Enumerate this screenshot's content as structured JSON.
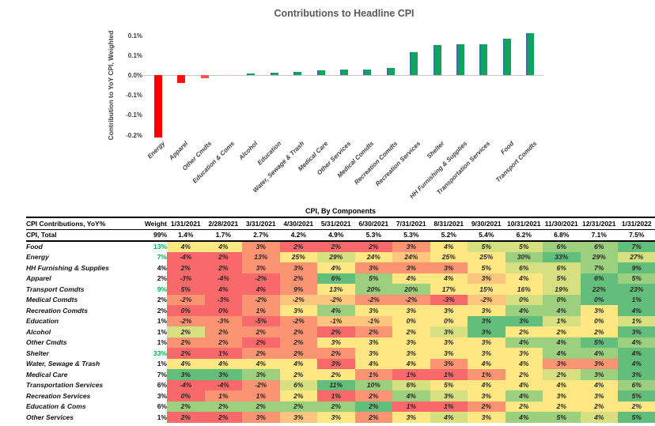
{
  "chart": {
    "title": "Contributions to Headline CPI",
    "y_axis_title": "Contribution to YoY CPI, Weighted"
  },
  "chart_data": {
    "type": "bar",
    "title": "Contributions to Headline CPI",
    "xlabel": "",
    "ylabel": "Contribution to YoY CPI, Weighted",
    "ylim": [
      -0.15,
      0.1
    ],
    "grid": false,
    "y_ticks": [
      {
        "label": "0.1%",
        "value": 0.1
      },
      {
        "label": "0.1%",
        "value": 0.05
      },
      {
        "label": "0.0%",
        "value": 0.0
      },
      {
        "label": "-0.1%",
        "value": -0.05
      },
      {
        "label": "-0.1%",
        "value": -0.1
      },
      {
        "label": "-0.2%",
        "value": -0.15
      }
    ],
    "categories": [
      "Energy",
      "Apparel",
      "Other Cmdts",
      "Education & Coms",
      "Alcohol",
      "Education",
      "Water, Sewage & Trash",
      "Medical Care",
      "Other Services",
      "Medical Comdts",
      "Recreation Comdts",
      "Recreation Services",
      "Shelter",
      "HH Furnishing & Supplies",
      "Transportation Services",
      "Food",
      "Transport Comdts"
    ],
    "values": [
      -0.155,
      -0.02,
      -0.007,
      -0.002,
      0.005,
      0.006,
      0.008,
      0.013,
      0.015,
      0.015,
      0.018,
      0.058,
      0.077,
      0.079,
      0.078,
      0.092,
      0.105
    ],
    "bar_colors": [
      "#FF0000",
      "#FF0D0D",
      "#FF5050",
      "#FFB9B9",
      "#0FA45B",
      "#0FA45B",
      "#0FA45B",
      "#0FA45B",
      "#0FA45B",
      "#0FA45B",
      "#0FA45B",
      "#0FA45B",
      "#0FA45B",
      "#0FA45B",
      "#0FA45B",
      "#0FA45B",
      "#0FA45B"
    ],
    "positive_border_color": "#2E74B5"
  },
  "table": {
    "title": "CPI, By Components",
    "palette": {
      "R": "#F8696B",
      "O": "#FA9473",
      "YO": "#FDC57D",
      "Y": "#FFE884",
      "YG": "#D7E081",
      "LG": "#9CCF7E",
      "G": "#63BE7B"
    },
    "weight_green_color": "#00B050",
    "header": {
      "label_col": "CPI Contributions, YoY%",
      "weight_col": "Weight",
      "dates": [
        "1/31/2021",
        "2/28/2021",
        "3/31/2021",
        "4/30/2021",
        "5/31/2021",
        "6/30/2021",
        "7/31/2021",
        "8/31/2021",
        "9/30/2021",
        "10/31/2021",
        "11/30/2021",
        "12/31/2021",
        "1/31/2022"
      ]
    },
    "total_row": {
      "label": "CPI, Total",
      "weight": "99%",
      "values": [
        "1.4%",
        "1.7%",
        "2.7%",
        "4.2%",
        "4.9%",
        "5.3%",
        "5.3%",
        "5.2%",
        "5.4%",
        "6.2%",
        "6.8%",
        "7.1%",
        "7.5%"
      ]
    },
    "rows": [
      {
        "label": "Food",
        "weight": "13%",
        "weight_green": true,
        "values": [
          "4%",
          "4%",
          "3%",
          "2%",
          "2%",
          "2%",
          "3%",
          "4%",
          "5%",
          "5%",
          "6%",
          "6%",
          "7%"
        ],
        "colors": [
          "Y",
          "Y",
          "O",
          "R",
          "R",
          "R",
          "O",
          "Y",
          "YG",
          "YG",
          "LG",
          "LG",
          "G"
        ]
      },
      {
        "label": "Energy",
        "weight": "7%",
        "weight_green": true,
        "values": [
          "-4%",
          "2%",
          "13%",
          "25%",
          "29%",
          "24%",
          "24%",
          "25%",
          "25%",
          "30%",
          "33%",
          "29%",
          "27%"
        ],
        "colors": [
          "R",
          "R",
          "O",
          "Y",
          "YG",
          "Y",
          "YO",
          "Y",
          "Y",
          "LG",
          "G",
          "LG",
          "YG"
        ]
      },
      {
        "label": "HH Furnishing & Supplies",
        "weight": "4%",
        "weight_green": false,
        "values": [
          "2%",
          "2%",
          "3%",
          "3%",
          "4%",
          "3%",
          "3%",
          "3%",
          "5%",
          "6%",
          "6%",
          "7%",
          "9%"
        ],
        "colors": [
          "R",
          "R",
          "O",
          "O",
          "Y",
          "O",
          "O",
          "O",
          "Y",
          "YG",
          "YG",
          "LG",
          "G"
        ]
      },
      {
        "label": "Apparel",
        "weight": "2%",
        "weight_green": false,
        "values": [
          "-3%",
          "-4%",
          "-2%",
          "2%",
          "6%",
          "5%",
          "4%",
          "4%",
          "3%",
          "4%",
          "5%",
          "6%",
          "5%"
        ],
        "colors": [
          "R",
          "R",
          "R",
          "O",
          "G",
          "LG",
          "Y",
          "Y",
          "YO",
          "Y",
          "YG",
          "G",
          "LG"
        ]
      },
      {
        "label": "Transport Comdts",
        "weight": "9%",
        "weight_green": true,
        "values": [
          "5%",
          "4%",
          "4%",
          "9%",
          "13%",
          "20%",
          "20%",
          "17%",
          "15%",
          "16%",
          "19%",
          "22%",
          "23%"
        ],
        "colors": [
          "R",
          "R",
          "R",
          "O",
          "Y",
          "LG",
          "LG",
          "Y",
          "Y",
          "Y",
          "YG",
          "G",
          "G"
        ]
      },
      {
        "label": "Medical Comdts",
        "weight": "2%",
        "weight_green": false,
        "values": [
          "-2%",
          "-3%",
          "-2%",
          "-2%",
          "-2%",
          "-2%",
          "-2%",
          "-3%",
          "-2%",
          "0%",
          "0%",
          "0%",
          "1%"
        ],
        "colors": [
          "O",
          "R",
          "O",
          "YO",
          "YO",
          "O",
          "O",
          "R",
          "YO",
          "YG",
          "LG",
          "G",
          "G"
        ]
      },
      {
        "label": "Recreation Comdts",
        "weight": "2%",
        "weight_green": false,
        "values": [
          "0%",
          "0%",
          "1%",
          "3%",
          "4%",
          "3%",
          "3%",
          "3%",
          "3%",
          "4%",
          "4%",
          "3%",
          "4%"
        ],
        "colors": [
          "R",
          "R",
          "O",
          "Y",
          "LG",
          "Y",
          "Y",
          "Y",
          "Y",
          "LG",
          "LG",
          "Y",
          "G"
        ]
      },
      {
        "label": "Education",
        "weight": "1%",
        "weight_green": false,
        "values": [
          "-2%",
          "-3%",
          "-5%",
          "-2%",
          "-1%",
          "-1%",
          "0%",
          "0%",
          "3%",
          "3%",
          "1%",
          "0%",
          "1%"
        ],
        "colors": [
          "O",
          "O",
          "R",
          "O",
          "YO",
          "YO",
          "Y",
          "Y",
          "G",
          "G",
          "YG",
          "Y",
          "YG"
        ]
      },
      {
        "label": "Alcohol",
        "weight": "1%",
        "weight_green": false,
        "values": [
          "2%",
          "2%",
          "2%",
          "2%",
          "2%",
          "2%",
          "2%",
          "3%",
          "3%",
          "2%",
          "2%",
          "2%",
          "3%"
        ],
        "colors": [
          "YG",
          "O",
          "O",
          "O",
          "R",
          "O",
          "Y",
          "YG",
          "G",
          "Y",
          "Y",
          "Y",
          "G"
        ]
      },
      {
        "label": "Other Cmdts",
        "weight": "1%",
        "weight_green": false,
        "values": [
          "2%",
          "2%",
          "2%",
          "2%",
          "3%",
          "3%",
          "3%",
          "3%",
          "3%",
          "4%",
          "4%",
          "5%",
          "4%"
        ],
        "colors": [
          "O",
          "O",
          "R",
          "O",
          "Y",
          "Y",
          "Y",
          "Y",
          "Y",
          "LG",
          "LG",
          "G",
          "LG"
        ]
      },
      {
        "label": "Shelter",
        "weight": "33%",
        "weight_green": true,
        "values": [
          "2%",
          "1%",
          "2%",
          "2%",
          "2%",
          "3%",
          "3%",
          "3%",
          "3%",
          "3%",
          "4%",
          "4%",
          "4%"
        ],
        "colors": [
          "R",
          "R",
          "O",
          "O",
          "O",
          "Y",
          "Y",
          "Y",
          "Y",
          "Y",
          "LG",
          "LG",
          "G"
        ]
      },
      {
        "label": "Water, Sewage & Trash",
        "weight": "1%",
        "weight_green": false,
        "values": [
          "4%",
          "4%",
          "4%",
          "4%",
          "3%",
          "4%",
          "4%",
          "3%",
          "4%",
          "4%",
          "3%",
          "3%",
          "4%"
        ],
        "colors": [
          "Y",
          "Y",
          "Y",
          "Y",
          "R",
          "Y",
          "Y",
          "O",
          "Y",
          "Y",
          "O",
          "O",
          "G"
        ]
      },
      {
        "label": "Medical Care",
        "weight": "7%",
        "weight_green": false,
        "values": [
          "3%",
          "3%",
          "3%",
          "2%",
          "2%",
          "1%",
          "1%",
          "1%",
          "1%",
          "2%",
          "2%",
          "3%",
          "3%"
        ],
        "colors": [
          "G",
          "G",
          "LG",
          "Y",
          "Y",
          "O",
          "R",
          "R",
          "O",
          "Y",
          "YG",
          "LG",
          "G"
        ]
      },
      {
        "label": "Transportation Services",
        "weight": "6%",
        "weight_green": false,
        "values": [
          "-4%",
          "-4%",
          "-2%",
          "6%",
          "11%",
          "10%",
          "6%",
          "5%",
          "4%",
          "4%",
          "4%",
          "4%",
          "6%"
        ],
        "colors": [
          "R",
          "R",
          "O",
          "YG",
          "G",
          "LG",
          "YG",
          "Y",
          "Y",
          "Y",
          "Y",
          "Y",
          "LG"
        ]
      },
      {
        "label": "Recreation Services",
        "weight": "3%",
        "weight_green": false,
        "values": [
          "0%",
          "1%",
          "1%",
          "2%",
          "1%",
          "2%",
          "4%",
          "3%",
          "3%",
          "4%",
          "3%",
          "3%",
          "5%"
        ],
        "colors": [
          "R",
          "O",
          "O",
          "Y",
          "R",
          "O",
          "LG",
          "YG",
          "Y",
          "LG",
          "Y",
          "Y",
          "G"
        ]
      },
      {
        "label": "Education & Coms",
        "weight": "6%",
        "weight_green": false,
        "values": [
          "2%",
          "2%",
          "2%",
          "2%",
          "2%",
          "2%",
          "1%",
          "1%",
          "2%",
          "2%",
          "2%",
          "2%",
          "2%"
        ],
        "colors": [
          "LG",
          "LG",
          "LG",
          "LG",
          "LG",
          "G",
          "R",
          "R",
          "O",
          "Y",
          "Y",
          "Y",
          "Y"
        ]
      },
      {
        "label": "Other Services",
        "weight": "1%",
        "weight_green": false,
        "values": [
          "2%",
          "2%",
          "3%",
          "3%",
          "3%",
          "2%",
          "3%",
          "4%",
          "3%",
          "4%",
          "5%",
          "4%",
          "5%"
        ],
        "colors": [
          "R",
          "R",
          "O",
          "YO",
          "Y",
          "O",
          "Y",
          "YG",
          "Y",
          "LG",
          "LG",
          "YG",
          "G"
        ]
      }
    ]
  }
}
